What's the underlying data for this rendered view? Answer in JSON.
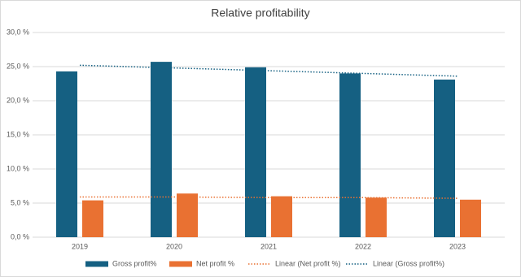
{
  "chart_data": {
    "type": "bar",
    "title": "Relative profitability",
    "categories": [
      "2019",
      "2020",
      "2021",
      "2022",
      "2023"
    ],
    "series": [
      {
        "name": "Gross profit%",
        "type": "bar",
        "color": "#156082",
        "values": [
          24.3,
          25.7,
          24.9,
          24.0,
          23.1
        ]
      },
      {
        "name": "Net profit %",
        "type": "bar",
        "color": "#e97132",
        "values": [
          5.4,
          6.4,
          6.0,
          5.8,
          5.5
        ]
      },
      {
        "name": "Linear (Net profit %)",
        "type": "line",
        "dashed": true,
        "color": "#e97132",
        "values": [
          5.9,
          5.9,
          5.8,
          5.8,
          5.7
        ]
      },
      {
        "name": "Linear (Gross profit%)",
        "type": "line",
        "dashed": true,
        "color": "#156082",
        "values": [
          25.2,
          24.8,
          24.4,
          24.0,
          23.6
        ]
      }
    ],
    "ylim": [
      0,
      30
    ],
    "yticks": [
      {
        "value": 0,
        "label": "0,0 %"
      },
      {
        "value": 5,
        "label": "5,0 %"
      },
      {
        "value": 10,
        "label": "10,0 %"
      },
      {
        "value": 15,
        "label": "15,0 %"
      },
      {
        "value": 20,
        "label": "20,0 %"
      },
      {
        "value": 25,
        "label": "25,0 %"
      },
      {
        "value": 30,
        "label": "30,0 %"
      }
    ],
    "grid": true,
    "legend": "bottom"
  }
}
